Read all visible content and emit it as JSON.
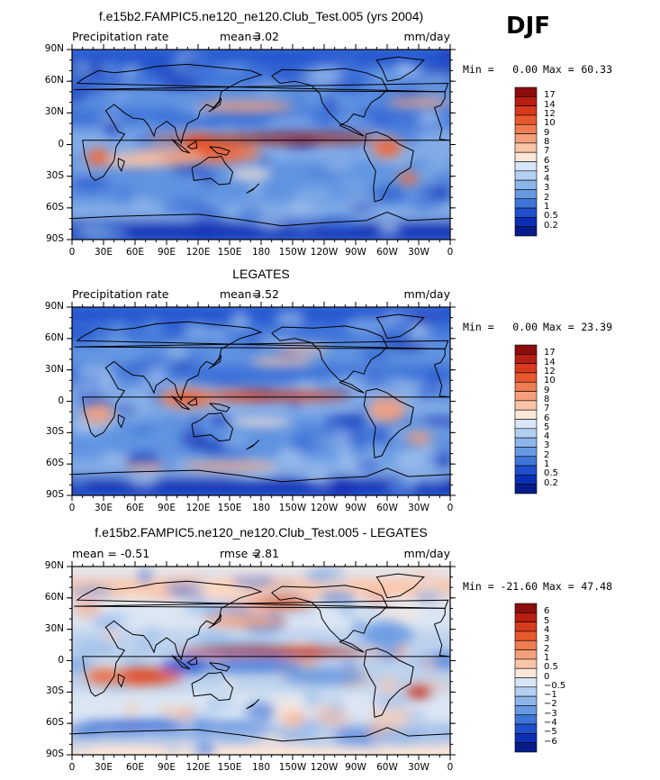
{
  "page_label": "DJF",
  "chart_data": [
    {
      "type": "heatmap",
      "title": "f.e15b2.FAMPIC5.ne120_ne120.Club_Test.005 (yrs 2004)",
      "left_subtitle": "Precipitation rate",
      "center_label": "mean=",
      "center_value": "3.02",
      "right_subtitle": "mm/day",
      "min_label": "Min =",
      "min_value": "0.00",
      "max_label": "Max =",
      "max_value": "60.33",
      "x_ticks": [
        "0",
        "30E",
        "60E",
        "90E",
        "120E",
        "150E",
        "180",
        "150W",
        "120W",
        "90W",
        "60W",
        "30W",
        "0"
      ],
      "y_ticks": [
        "90N",
        "60N",
        "30N",
        "0",
        "30S",
        "60S",
        "90S"
      ],
      "colorbar_levels": [
        "17",
        "14",
        "12",
        "10",
        "9",
        "8",
        "7",
        "6",
        "5",
        "4",
        "3",
        "2",
        "1",
        "0.5",
        "0.2"
      ],
      "colorbar_colors": [
        "#8c0d0d",
        "#b81e12",
        "#d83a1c",
        "#e8582e",
        "#f07c52",
        "#f59f7d",
        "#f9c4a8",
        "#fde7d8",
        "#d6e6f7",
        "#b3cff1",
        "#8db5ea",
        "#6699e2",
        "#3f74d9",
        "#1f4fcc",
        "#0b2fb4",
        "#061c8a"
      ],
      "colorbar_type": "precip"
    },
    {
      "type": "heatmap",
      "title": "LEGATES",
      "left_subtitle": "Precipitation rate",
      "center_label": "mean=",
      "center_value": "3.52",
      "right_subtitle": "mm/day",
      "min_label": "Min =",
      "min_value": "0.00",
      "max_label": "Max =",
      "max_value": "23.39",
      "x_ticks": [
        "0",
        "30E",
        "60E",
        "90E",
        "120E",
        "150E",
        "180",
        "150W",
        "120W",
        "90W",
        "60W",
        "30W",
        "0"
      ],
      "y_ticks": [
        "90N",
        "60N",
        "30N",
        "0",
        "30S",
        "60S",
        "90S"
      ],
      "colorbar_levels": [
        "17",
        "14",
        "12",
        "10",
        "9",
        "8",
        "7",
        "6",
        "5",
        "4",
        "3",
        "2",
        "1",
        "0.5",
        "0.2"
      ],
      "colorbar_colors": [
        "#8c0d0d",
        "#b81e12",
        "#d83a1c",
        "#e8582e",
        "#f07c52",
        "#f59f7d",
        "#f9c4a8",
        "#fde7d8",
        "#d6e6f7",
        "#b3cff1",
        "#8db5ea",
        "#6699e2",
        "#3f74d9",
        "#1f4fcc",
        "#0b2fb4",
        "#061c8a"
      ],
      "colorbar_type": "precip"
    },
    {
      "type": "heatmap",
      "title": "f.e15b2.FAMPIC5.ne120_ne120.Club_Test.005 - LEGATES",
      "left_subtitle": "mean =   -0.51",
      "center_label": "rmse =",
      "center_value": "2.81",
      "right_subtitle": "mm/day",
      "min_label": "Min =",
      "min_value": "-21.60",
      "max_label": "Max =",
      "max_value": "47.48",
      "x_ticks": [
        "0",
        "30E",
        "60E",
        "90E",
        "120E",
        "150E",
        "180",
        "150W",
        "120W",
        "90W",
        "60W",
        "30W",
        "0"
      ],
      "y_ticks": [
        "90N",
        "60N",
        "30N",
        "0",
        "30S",
        "60S",
        "90S"
      ],
      "colorbar_levels": [
        "6",
        "5",
        "4",
        "3",
        "2",
        "1",
        "0.5",
        "0",
        "−0.5",
        "−1",
        "−2",
        "−3",
        "−4",
        "−5",
        "−6"
      ],
      "colorbar_colors": [
        "#8c0d0d",
        "#b81e12",
        "#d83a1c",
        "#e8582e",
        "#f07c52",
        "#f59f7d",
        "#f9c4a8",
        "#fde7d8",
        "#d6e6f7",
        "#b3cff1",
        "#8db5ea",
        "#6699e2",
        "#3f74d9",
        "#1f4fcc",
        "#0b2fb4",
        "#061c8a"
      ],
      "colorbar_type": "diff"
    }
  ]
}
